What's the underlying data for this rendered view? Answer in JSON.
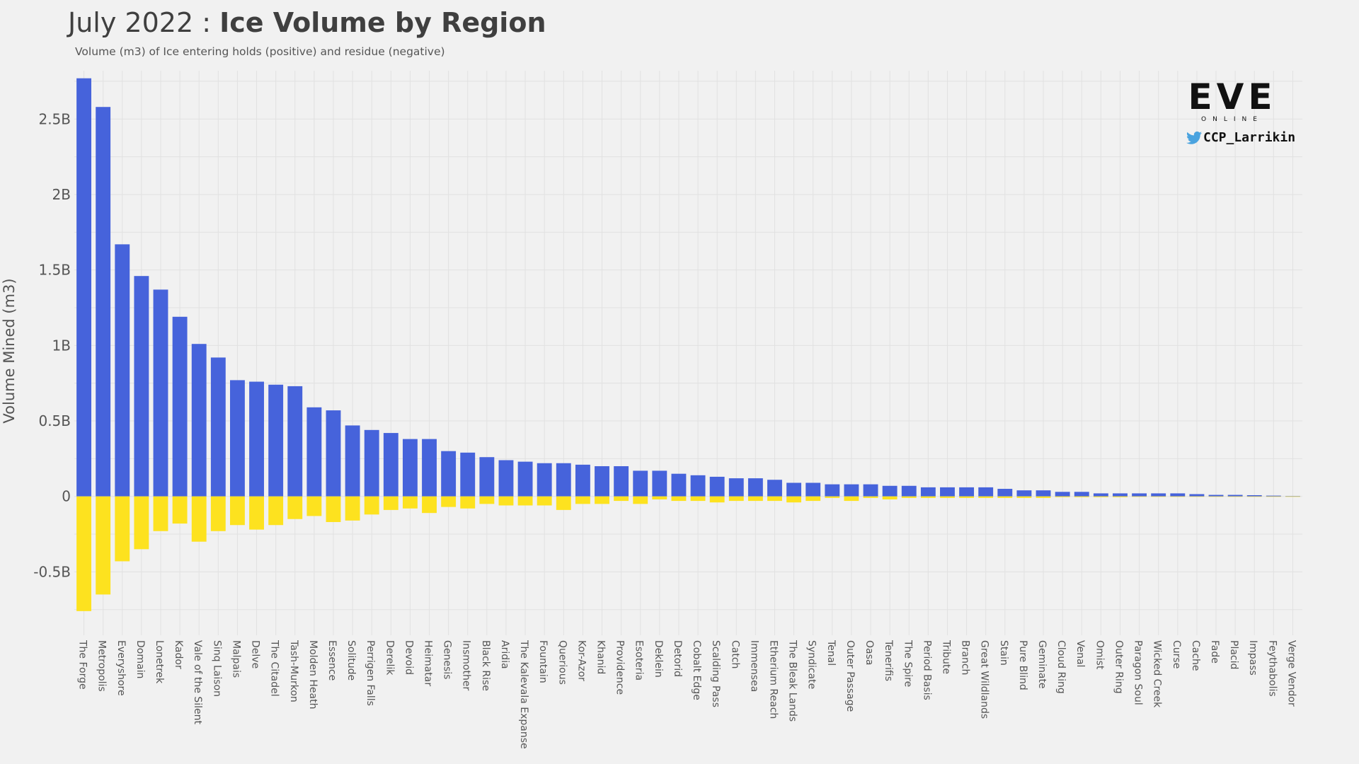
{
  "title": {
    "prefix": "July 2022 : ",
    "main": "Ice Volume by Region"
  },
  "subtitle": "Volume (m3) of Ice entering holds (positive) and residue (negative)",
  "branding": {
    "logo": "EVE",
    "logo_sub": "ONLINE",
    "handle": "CCP_Larrikin",
    "handle_icon": "twitter-bird-icon"
  },
  "colors": {
    "positive": "#4663db",
    "negative": "#fde21f",
    "background": "#f1f1f1",
    "grid": "#e1e1e1",
    "twitter": "#4aa3df"
  },
  "chart_data": {
    "type": "bar",
    "ylabel": "Volume Mined (m3)",
    "ylim": [
      -0.92,
      2.82
    ],
    "yticks": [
      {
        "value": -0.5,
        "label": "-0.5B"
      },
      {
        "value": 0,
        "label": "0"
      },
      {
        "value": 0.5,
        "label": "0.5B"
      },
      {
        "value": 1,
        "label": "1B"
      },
      {
        "value": 1.5,
        "label": "1.5B"
      },
      {
        "value": 2,
        "label": "2B"
      },
      {
        "value": 2.5,
        "label": "2.5B"
      }
    ],
    "grid": true,
    "categories": [
      "The Forge",
      "Metropolis",
      "Everyshore",
      "Domain",
      "Lonetrek",
      "Kador",
      "Vale of the Silent",
      "Sinq Laison",
      "Malpais",
      "Delve",
      "The Citadel",
      "Tash-Murkon",
      "Molden Heath",
      "Essence",
      "Solitude",
      "Perrigen Falls",
      "Derelik",
      "Devoid",
      "Heimatar",
      "Genesis",
      "Insmother",
      "Black Rise",
      "Aridia",
      "The Kalevala Expanse",
      "Fountain",
      "Querious",
      "Kor-Azor",
      "Khanid",
      "Providence",
      "Esoteria",
      "Deklein",
      "Detorid",
      "Cobalt Edge",
      "Scalding Pass",
      "Catch",
      "Immensea",
      "Etherium Reach",
      "The Bleak Lands",
      "Syndicate",
      "Tenal",
      "Outer Passage",
      "Oasa",
      "Tenerifis",
      "The Spire",
      "Period Basis",
      "Tribute",
      "Branch",
      "Great Wildlands",
      "Stain",
      "Pure Blind",
      "Geminate",
      "Cloud Ring",
      "Venal",
      "Omist",
      "Outer Ring",
      "Paragon Soul",
      "Wicked Creek",
      "Curse",
      "Cache",
      "Fade",
      "Placid",
      "Impass",
      "Feythabolis",
      "Verge Vendor"
    ],
    "series": [
      {
        "key": "positive",
        "values": [
          2.77,
          2.58,
          1.67,
          1.46,
          1.37,
          1.19,
          1.01,
          0.92,
          0.77,
          0.76,
          0.74,
          0.73,
          0.59,
          0.57,
          0.47,
          0.44,
          0.42,
          0.38,
          0.38,
          0.3,
          0.29,
          0.26,
          0.24,
          0.23,
          0.22,
          0.22,
          0.21,
          0.2,
          0.2,
          0.17,
          0.17,
          0.15,
          0.14,
          0.13,
          0.12,
          0.12,
          0.11,
          0.09,
          0.09,
          0.08,
          0.08,
          0.08,
          0.07,
          0.07,
          0.06,
          0.06,
          0.06,
          0.06,
          0.05,
          0.04,
          0.04,
          0.03,
          0.03,
          0.02,
          0.02,
          0.02,
          0.02,
          0.02,
          0.015,
          0.01,
          0.01,
          0.008,
          0.005,
          0.002
        ]
      },
      {
        "key": "negative",
        "values": [
          -0.76,
          -0.65,
          -0.43,
          -0.35,
          -0.23,
          -0.18,
          -0.3,
          -0.23,
          -0.19,
          -0.22,
          -0.19,
          -0.15,
          -0.13,
          -0.17,
          -0.16,
          -0.12,
          -0.09,
          -0.08,
          -0.11,
          -0.07,
          -0.08,
          -0.05,
          -0.06,
          -0.06,
          -0.06,
          -0.09,
          -0.05,
          -0.05,
          -0.03,
          -0.05,
          -0.02,
          -0.03,
          -0.03,
          -0.04,
          -0.03,
          -0.03,
          -0.03,
          -0.04,
          -0.03,
          -0.01,
          -0.03,
          -0.01,
          -0.02,
          -0.01,
          -0.01,
          -0.01,
          -0.01,
          -0.01,
          -0.01,
          -0.01,
          -0.01,
          -0.005,
          -0.005,
          -0.005,
          -0.005,
          -0.003,
          -0.003,
          -0.003,
          -0.002,
          -0.002,
          -0.002,
          -0.002,
          -0.001,
          -0.001
        ]
      }
    ]
  }
}
